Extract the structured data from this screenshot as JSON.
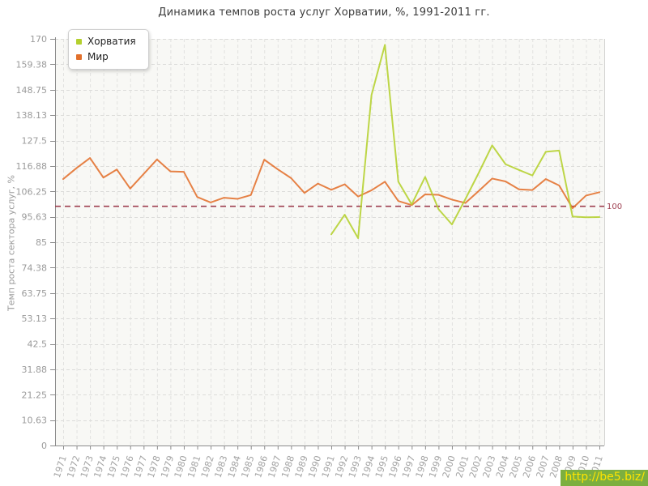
{
  "title": "Динамика темпов роста услуг Хорватии, %, 1991-2011 гг.",
  "y_axis_title": "Темп роста сектора услуг, %",
  "legend": {
    "items": [
      {
        "label": "Хорватия",
        "color": "#b4d02e"
      },
      {
        "label": "Мир",
        "color": "#e2702c"
      }
    ]
  },
  "reference_line": {
    "value": 100,
    "label": "100",
    "color": "#9e3f50"
  },
  "watermark": {
    "text": "http://be5.biz/",
    "text_color": "#ffe400",
    "bg_color": "#7caf3f"
  },
  "chart_data": {
    "type": "line",
    "title": "Динамика темпов роста услуг Хорватии, %, 1991-2011 гг.",
    "xlabel": "",
    "ylabel": "Темп роста сектора услуг, %",
    "ylim": [
      0,
      170
    ],
    "grid": true,
    "legend_position": "top-left",
    "y_tick_labels": [
      "0",
      "10.63",
      "21.25",
      "31.88",
      "42.5",
      "53.13",
      "63.75",
      "74.38",
      "85",
      "95.63",
      "106.25",
      "116.88",
      "127.5",
      "138.13",
      "148.75",
      "159.38",
      "170"
    ],
    "x_years": [
      1971,
      1972,
      1973,
      1974,
      1975,
      1976,
      1977,
      1978,
      1979,
      1980,
      1981,
      1982,
      1983,
      1984,
      1985,
      1986,
      1987,
      1988,
      1989,
      1990,
      1991,
      1992,
      1993,
      1994,
      1995,
      1996,
      1997,
      1998,
      1999,
      2000,
      2001,
      2002,
      2003,
      2004,
      2005,
      2006,
      2007,
      2008,
      2009,
      2010,
      2011
    ],
    "reference_line_y": 100,
    "series": [
      {
        "name": "Хорватия",
        "color": "#b4d02e",
        "start_year": 1991,
        "values": [
          88.3,
          96.5,
          86.7,
          146.5,
          167.5,
          110.3,
          100.8,
          112.3,
          98.8,
          92.4,
          103.0,
          114.0,
          125.5,
          117.6,
          115.2,
          112.9,
          122.8,
          123.3,
          95.7,
          95.4,
          95.5
        ]
      },
      {
        "name": "Мир",
        "color": "#e2702c",
        "start_year": 1971,
        "values": [
          111.4,
          116.0,
          120.2,
          112.0,
          115.4,
          107.4,
          113.5,
          119.6,
          114.6,
          114.4,
          103.9,
          101.6,
          103.6,
          103.1,
          104.7,
          119.5,
          115.5,
          111.8,
          105.6,
          109.5,
          106.9,
          109.2,
          104.1,
          106.7,
          110.3,
          102.2,
          100.5,
          105.0,
          104.8,
          102.8,
          101.4,
          106.4,
          111.6,
          110.4,
          107.1,
          106.8,
          111.4,
          108.7,
          99.2,
          104.5,
          105.9
        ]
      }
    ]
  }
}
